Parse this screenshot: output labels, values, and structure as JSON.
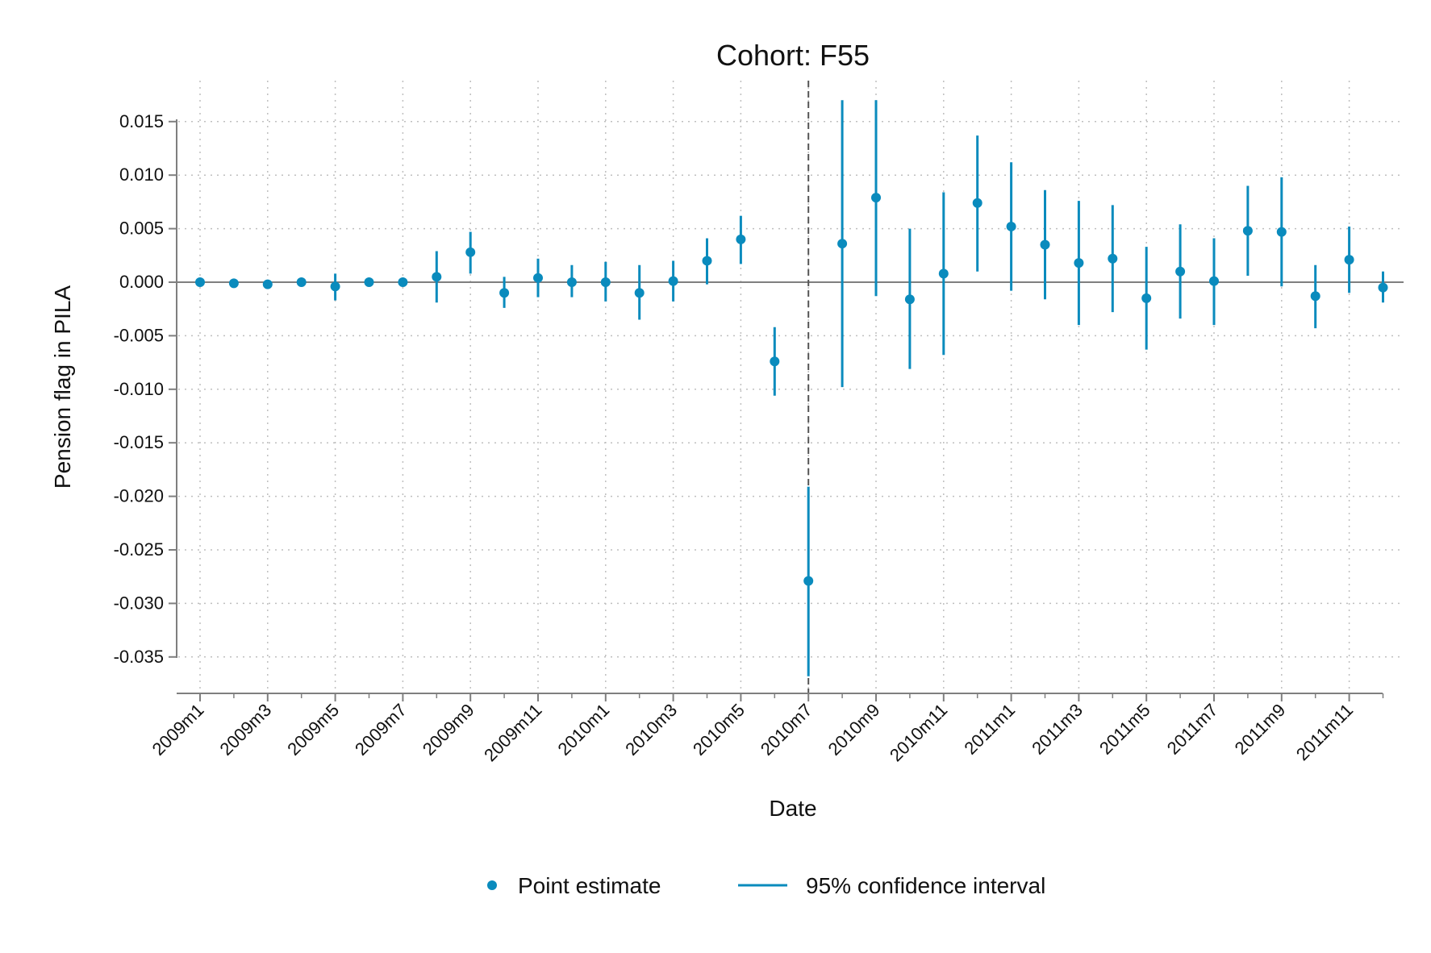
{
  "chart_data": {
    "type": "scatter",
    "title": "Cohort: F55",
    "xlabel": "Date",
    "ylabel": "Pension flag in PILA",
    "x_categories": [
      "2009m1",
      "2009m2",
      "2009m3",
      "2009m4",
      "2009m5",
      "2009m6",
      "2009m7",
      "2009m8",
      "2009m9",
      "2009m10",
      "2009m11",
      "2009m12",
      "2010m1",
      "2010m2",
      "2010m3",
      "2010m4",
      "2010m5",
      "2010m6",
      "2010m7",
      "2010m8",
      "2010m9",
      "2010m10",
      "2010m11",
      "2010m12",
      "2011m1",
      "2011m2",
      "2011m3",
      "2011m4",
      "2011m5",
      "2011m6",
      "2011m7",
      "2011m8",
      "2011m9",
      "2011m10",
      "2011m11",
      "2011m12"
    ],
    "x_tick_labels": [
      "2009m1",
      "2009m3",
      "2009m5",
      "2009m7",
      "2009m9",
      "2009m11",
      "2010m1",
      "2010m3",
      "2010m5",
      "2010m7",
      "2010m9",
      "2010m11",
      "2011m1",
      "2011m3",
      "2011m5",
      "2011m7",
      "2011m9",
      "2011m11"
    ],
    "y_ticks": [
      0.015,
      0.01,
      0.005,
      0.0,
      -0.005,
      -0.01,
      -0.015,
      -0.02,
      -0.025,
      -0.03,
      -0.035
    ],
    "y_tick_labels": [
      "0.015",
      "0.010",
      "0.005",
      "0.000",
      "-0.005",
      "-0.010",
      "-0.015",
      "-0.020",
      "-0.025",
      "-0.030",
      "-0.035"
    ],
    "ylim": [
      -0.037,
      0.0195
    ],
    "grid": true,
    "reference_line_y": 0,
    "event_line_x": "2010m7",
    "legend_position": "bottom",
    "series": [
      {
        "name": "Point estimate",
        "values": [
          0.0,
          -0.0001,
          -0.0002,
          0.0,
          -0.0004,
          0.0,
          0.0,
          0.0005,
          0.0028,
          -0.001,
          0.0004,
          0.0,
          0.0,
          -0.001,
          0.0001,
          0.002,
          0.004,
          -0.0074,
          -0.0279,
          0.0036,
          0.0079,
          -0.0016,
          0.0008,
          0.0074,
          0.0052,
          0.0035,
          0.0018,
          0.0022,
          -0.0015,
          0.001,
          0.0001,
          0.0048,
          0.0047,
          -0.0013,
          0.0021,
          -0.0005
        ]
      },
      {
        "name": "95% confidence interval",
        "lower": [
          0.0,
          -0.0001,
          -0.0002,
          0.0,
          -0.0017,
          0.0,
          0.0,
          -0.0019,
          0.0008,
          -0.0024,
          -0.0014,
          -0.0014,
          -0.0018,
          -0.0035,
          -0.0018,
          -0.0002,
          0.0017,
          -0.0106,
          -0.0368,
          -0.0098,
          -0.0013,
          -0.0081,
          -0.0068,
          0.001,
          -0.0008,
          -0.0016,
          -0.004,
          -0.0028,
          -0.0063,
          -0.0034,
          -0.004,
          0.0006,
          -0.0004,
          -0.0043,
          -0.001,
          -0.0019
        ],
        "upper": [
          0.0,
          -0.0001,
          -0.0002,
          0.0,
          0.0008,
          0.0,
          0.0,
          0.0029,
          0.0047,
          0.0005,
          0.0022,
          0.0016,
          0.0019,
          0.0016,
          0.002,
          0.0041,
          0.0062,
          -0.0042,
          -0.0191,
          0.017,
          0.017,
          0.005,
          0.0084,
          0.0137,
          0.0112,
          0.0086,
          0.0076,
          0.0072,
          0.0033,
          0.0054,
          0.0041,
          0.009,
          0.0098,
          0.0016,
          0.0052,
          0.001
        ]
      }
    ],
    "colors": {
      "marker": "#0a8bbd",
      "axis": "#7f7f7f",
      "grid": "#bfbfbf",
      "event_line": "#555555"
    }
  }
}
